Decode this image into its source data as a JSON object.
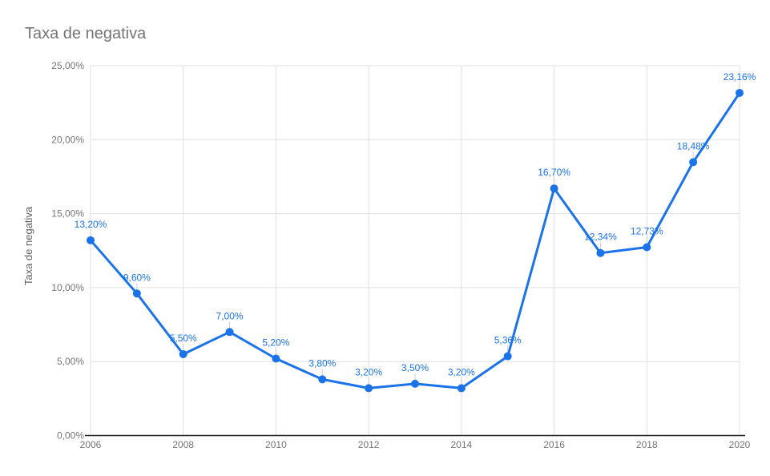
{
  "header": {
    "title": "Taxa de negativa"
  },
  "chart_data": {
    "type": "line",
    "title": "Taxa de negativa",
    "xlabel": "",
    "ylabel": "Taxa de negativa",
    "x": [
      2006,
      2007,
      2008,
      2009,
      2010,
      2011,
      2012,
      2013,
      2014,
      2015,
      2016,
      2017,
      2018,
      2019,
      2020
    ],
    "series": [
      {
        "name": "Taxa de negativa",
        "values": [
          13.2,
          9.6,
          5.5,
          7.0,
          5.2,
          3.8,
          3.2,
          3.5,
          3.2,
          5.36,
          16.7,
          12.34,
          12.73,
          18.48,
          23.16
        ],
        "labels": [
          "13,20%",
          "9,60%",
          "5,50%",
          "7,00%",
          "5,20%",
          "3,80%",
          "3,20%",
          "3,50%",
          "3,20%",
          "5,36%",
          "16,70%",
          "12,34%",
          "12,73%",
          "18,48%",
          "23,16%"
        ]
      }
    ],
    "ylim": [
      0,
      25
    ],
    "xlim": [
      2006,
      2020
    ],
    "y_ticks": [
      {
        "v": 0,
        "label": "0,00%"
      },
      {
        "v": 5,
        "label": "5,00%"
      },
      {
        "v": 10,
        "label": "10,00%"
      },
      {
        "v": 15,
        "label": "15,00%"
      },
      {
        "v": 20,
        "label": "20,00%"
      },
      {
        "v": 25,
        "label": "25,00%"
      }
    ],
    "x_ticks": [
      {
        "v": 2006,
        "label": "2006"
      },
      {
        "v": 2008,
        "label": "2008"
      },
      {
        "v": 2010,
        "label": "2010"
      },
      {
        "v": 2012,
        "label": "2012"
      },
      {
        "v": 2014,
        "label": "2014"
      },
      {
        "v": 2016,
        "label": "2016"
      },
      {
        "v": 2018,
        "label": "2018"
      },
      {
        "v": 2020,
        "label": "2020"
      }
    ],
    "grid": true,
    "legend": "none",
    "colors": {
      "series": "#1a73e8",
      "gridline": "#e0e0e0",
      "axis_line": "#212121",
      "tick_text": "#757575",
      "title_text": "#757575",
      "ylabel_text": "#616161",
      "annotation_stem": "#cccccc",
      "background": "#ffffff"
    }
  }
}
